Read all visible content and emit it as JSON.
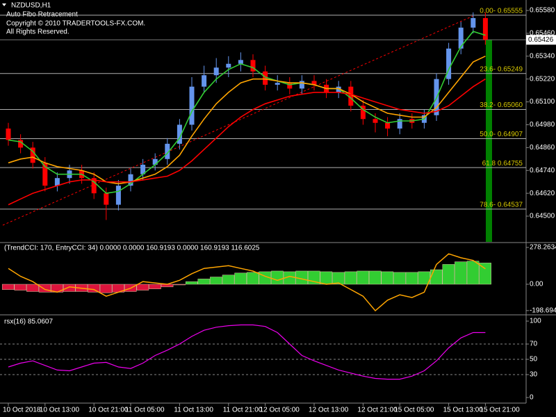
{
  "chart_data": [
    {
      "type": "candlestick",
      "title": "NZDUSD,H1",
      "annotations": [
        "Auto Fibo Retracement",
        "Copyright © 2010 TRADERTOOLS-FX.COM.",
        "All Rights Reserved."
      ],
      "categories": [
        "10 Oct 2018",
        null,
        null,
        "10 Oct 13:00",
        null,
        null,
        null,
        "10 Oct 21:00",
        null,
        null,
        "11 Oct 05:00",
        null,
        null,
        null,
        "11 Oct 13:00",
        null,
        null,
        null,
        "11 Oct 21:00",
        null,
        null,
        "12 Oct 05:00",
        null,
        null,
        null,
        "12 Oct 13:00",
        null,
        null,
        null,
        "12 Oct 21:00",
        null,
        null,
        "15 Oct 05:00",
        null,
        null,
        null,
        "15 Oct 13:00",
        null,
        null,
        "15 Oct 21:00"
      ],
      "open": [
        0.6496,
        0.649,
        0.6486,
        0.6478,
        0.6466,
        0.647,
        0.6474,
        0.647,
        0.6462,
        0.6456,
        0.6466,
        0.6472,
        0.6477,
        0.648,
        0.6488,
        0.6498,
        0.6518,
        0.6524,
        0.6528,
        0.653,
        0.6532,
        0.6526,
        0.6519,
        0.652,
        0.6517,
        0.6521,
        0.6519,
        0.6515,
        0.6518,
        0.6508,
        0.6501,
        0.6499,
        0.6496,
        0.6501,
        0.6499,
        0.6503,
        0.6522,
        0.6538,
        0.6549,
        0.6554
      ],
      "high": [
        0.6499,
        0.6493,
        0.6489,
        0.6481,
        0.6473,
        0.6477,
        0.6477,
        0.6473,
        0.6465,
        0.6469,
        0.6475,
        0.648,
        0.6483,
        0.6491,
        0.6501,
        0.6523,
        0.6529,
        0.6533,
        0.6534,
        0.6536,
        0.6535,
        0.6529,
        0.6524,
        0.6523,
        0.6524,
        0.6524,
        0.6522,
        0.6521,
        0.6521,
        0.6511,
        0.6504,
        0.6502,
        0.6504,
        0.6504,
        0.6506,
        0.6525,
        0.6541,
        0.6552,
        0.6557,
        0.6557
      ],
      "low": [
        0.6487,
        0.6483,
        0.6475,
        0.6463,
        0.6463,
        0.6467,
        0.6467,
        0.6459,
        0.6448,
        0.6453,
        0.6463,
        0.6469,
        0.6474,
        0.6477,
        0.6485,
        0.6495,
        0.6515,
        0.652,
        0.6523,
        0.6526,
        0.6523,
        0.6516,
        0.6516,
        0.6514,
        0.6514,
        0.6516,
        0.6512,
        0.6512,
        0.6505,
        0.6498,
        0.6494,
        0.6492,
        0.6493,
        0.6496,
        0.6496,
        0.65,
        0.6519,
        0.6535,
        0.6546,
        0.654
      ],
      "close": [
        0.649,
        0.6486,
        0.6478,
        0.6466,
        0.647,
        0.6474,
        0.647,
        0.6462,
        0.6456,
        0.6466,
        0.6472,
        0.6477,
        0.648,
        0.6488,
        0.6498,
        0.6518,
        0.6524,
        0.6528,
        0.653,
        0.6532,
        0.6526,
        0.6519,
        0.652,
        0.6517,
        0.6521,
        0.6519,
        0.6515,
        0.6518,
        0.6508,
        0.6501,
        0.6499,
        0.6496,
        0.6501,
        0.6499,
        0.6503,
        0.6522,
        0.6538,
        0.6549,
        0.6554,
        0.65426
      ],
      "up_color": "#6495ed",
      "down_color": "#ff0000",
      "series": [
        {
          "color": "#32cd32",
          "values": [
            0.649,
            0.6489,
            0.6484,
            0.6476,
            0.6472,
            0.6472,
            0.6472,
            0.6468,
            0.6462,
            0.6463,
            0.6467,
            0.6472,
            0.6477,
            0.6483,
            0.6491,
            0.6505,
            0.6515,
            0.6522,
            0.6527,
            0.653,
            0.6528,
            0.6523,
            0.6521,
            0.6519,
            0.652,
            0.6519,
            0.6517,
            0.6517,
            0.6512,
            0.6506,
            0.6502,
            0.6499,
            0.65,
            0.65,
            0.6501,
            0.6512,
            0.6527,
            0.6539,
            0.6547,
            0.6545
          ]
        },
        {
          "color": "#ffa500",
          "values": [
            0.6478,
            0.648,
            0.6481,
            0.6478,
            0.6476,
            0.6475,
            0.6474,
            0.6472,
            0.6468,
            0.6467,
            0.6468,
            0.647,
            0.6472,
            0.6476,
            0.6482,
            0.6492,
            0.6501,
            0.6509,
            0.6515,
            0.652,
            0.6522,
            0.6522,
            0.6521,
            0.652,
            0.652,
            0.6519,
            0.6517,
            0.6517,
            0.6514,
            0.651,
            0.6507,
            0.6504,
            0.6503,
            0.6502,
            0.6502,
            0.6507,
            0.6515,
            0.6523,
            0.6531,
            0.6534
          ]
        },
        {
          "color": "#ff0000",
          "values": [
            0.6456,
            0.6459,
            0.6462,
            0.6464,
            0.6466,
            0.6468,
            0.6469,
            0.6469,
            0.6468,
            0.6468,
            0.6468,
            0.6469,
            0.647,
            0.6471,
            0.6474,
            0.6479,
            0.6485,
            0.6491,
            0.6497,
            0.6502,
            0.6506,
            0.6509,
            0.6511,
            0.6513,
            0.6514,
            0.6515,
            0.6515,
            0.6515,
            0.6514,
            0.6512,
            0.651,
            0.6508,
            0.6506,
            0.6505,
            0.6504,
            0.6505,
            0.6508,
            0.6513,
            0.6518,
            0.6522
          ]
        }
      ],
      "fibo": [
        {
          "label": "0.00- 0.65555",
          "value": 0.65555
        },
        {
          "label": "23.6- 0.65249",
          "value": 0.65249
        },
        {
          "label": "38.2- 0.65060",
          "value": 0.6506
        },
        {
          "label": "50.0- 0.64907",
          "value": 0.64907
        },
        {
          "label": "61.8 0.64755",
          "value": 0.64755
        },
        {
          "label": "78.6- 0.64537",
          "value": 0.64537
        }
      ],
      "fibo_color": "#d8c800",
      "last_price": 0.65426,
      "ylim": [
        0.64365,
        0.65635
      ],
      "yticks": [
        {
          "value": 0.6558,
          "label": "0.65580"
        },
        {
          "value": 0.6546,
          "label": "0.65460"
        },
        {
          "value": 0.6534,
          "label": "0.65340"
        },
        {
          "value": 0.6522,
          "label": "0.65220"
        },
        {
          "value": 0.651,
          "label": "0.65100"
        },
        {
          "value": 0.6498,
          "label": "0.64980"
        },
        {
          "value": 0.6486,
          "label": "0.64860"
        },
        {
          "value": 0.6474,
          "label": "0.64740"
        },
        {
          "value": 0.6462,
          "label": "0.64620"
        },
        {
          "value": 0.645,
          "label": "0.64500"
        }
      ]
    },
    {
      "type": "bar",
      "title": "(TrendCCI: 170, EntryCCI: 34)  0.0000 0.0000 160.9193 0.0000 160.9193 116.6025",
      "values": [
        -40,
        -45,
        -55,
        -60,
        -60,
        -55,
        -55,
        -60,
        -65,
        -60,
        -55,
        -45,
        -35,
        -20,
        -5,
        20,
        40,
        55,
        70,
        85,
        90,
        95,
        100,
        95,
        100,
        100,
        95,
        90,
        95,
        100,
        100,
        95,
        90,
        90,
        95,
        110,
        150,
        170,
        175,
        160.9193
      ],
      "negative_color": "#dc143c",
      "positive_color": "#32cd32",
      "series": [
        {
          "color": "#ffa500",
          "values": [
            120,
            60,
            20,
            -40,
            -60,
            -20,
            -30,
            -40,
            -90,
            -60,
            -30,
            20,
            10,
            0,
            30,
            80,
            120,
            130,
            140,
            120,
            100,
            60,
            30,
            60,
            40,
            20,
            0,
            10,
            -40,
            -90,
            -200,
            -120,
            -80,
            -100,
            -60,
            150,
            230,
            200,
            180,
            116.6025
          ]
        }
      ],
      "ylim": [
        -225.7,
        309.8
      ],
      "yticks": [
        278.2634,
        {
          "value": 0,
          "label": "0.00"
        },
        -198.6945
      ]
    },
    {
      "type": "line",
      "title": "rsx(16) 85.0607",
      "values": [
        40,
        45,
        48,
        42,
        36,
        35,
        40,
        45,
        46,
        40,
        38,
        45,
        55,
        62,
        70,
        80,
        88,
        92,
        94,
        95,
        95,
        93,
        85,
        70,
        55,
        48,
        42,
        36,
        32,
        28,
        25,
        24,
        24,
        28,
        35,
        48,
        65,
        78,
        85,
        85.0607
      ],
      "color": "#ee00ee",
      "levels": [
        30,
        50,
        70
      ],
      "ylim": [
        -7.3,
        106.4
      ],
      "yticks": [
        0,
        30,
        50,
        70,
        100
      ]
    }
  ]
}
